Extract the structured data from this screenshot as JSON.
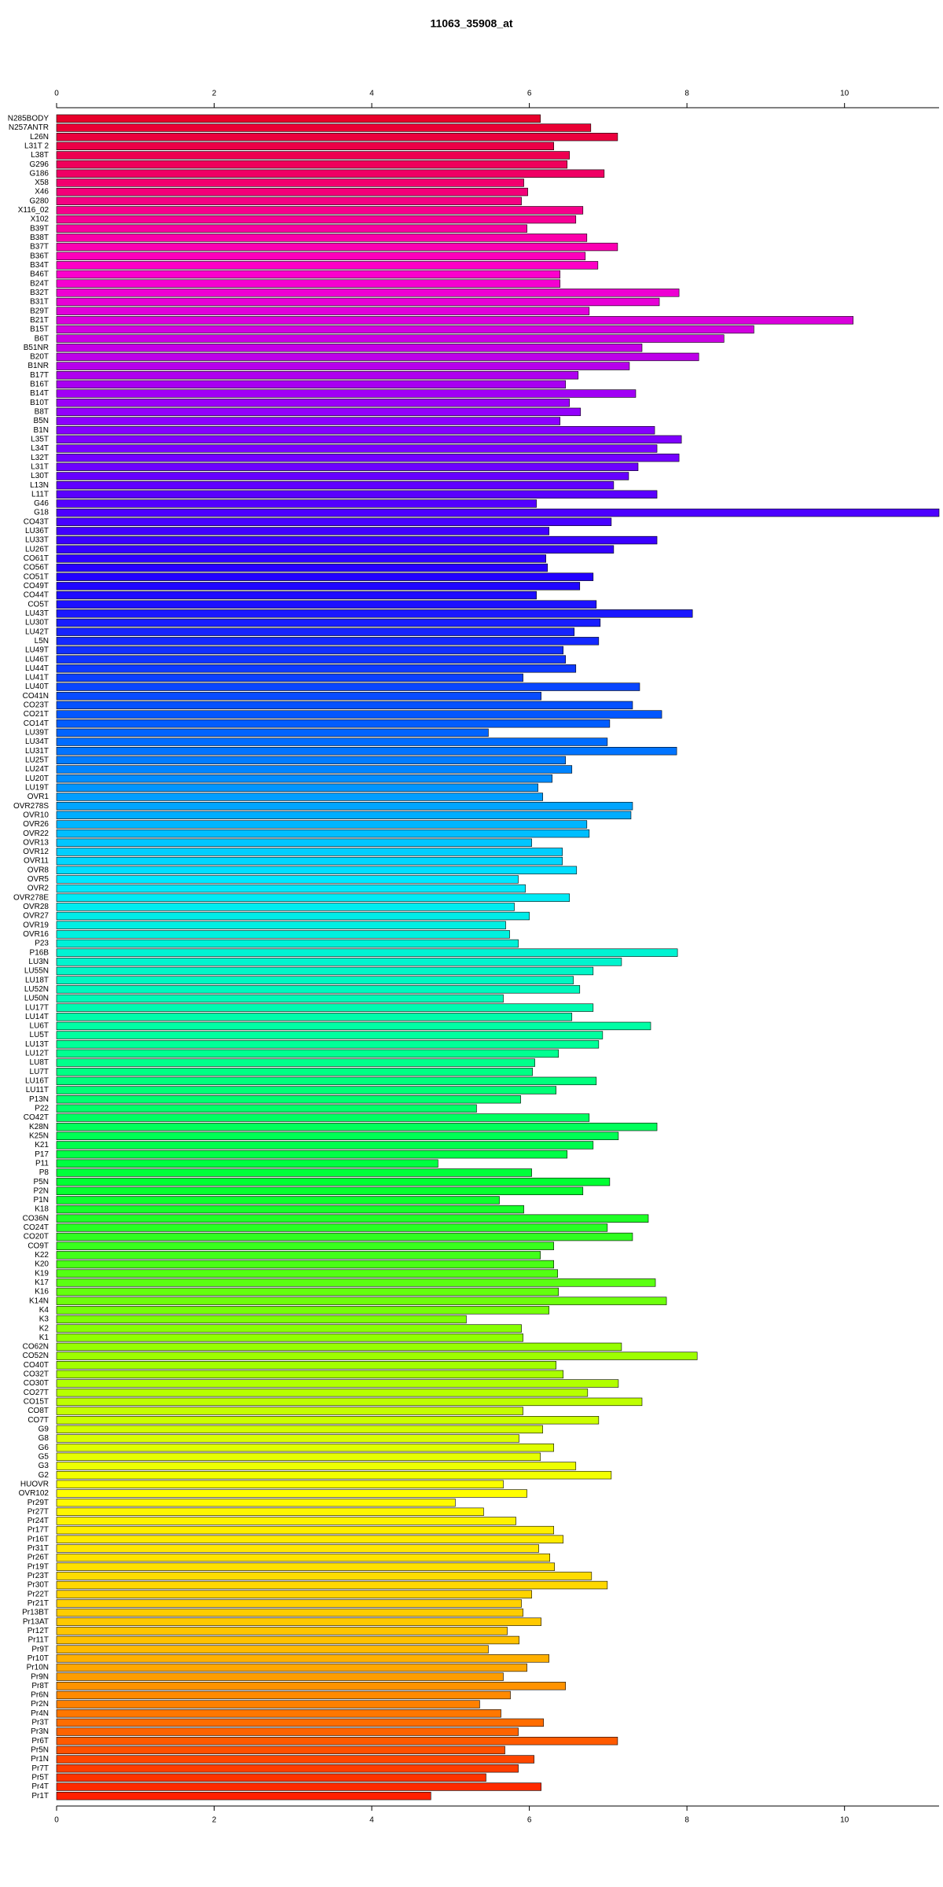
{
  "chart_data": {
    "type": "barh",
    "title": "11063_35908_at",
    "categories": [
      "N285BODY",
      "N257ANTR",
      "L26N",
      "L31T 2",
      "L38T",
      "G296",
      "G186",
      "X58",
      "X46",
      "G280",
      "X116_02",
      "X102",
      "B39T",
      "B38T",
      "B37T",
      "B36T",
      "B34T",
      "B46T",
      "B24T",
      "B32T",
      "B31T",
      "B29T",
      "B21T",
      "B15T",
      "B6T",
      "B51NR",
      "B20T",
      "B1NR",
      "B17T",
      "B16T",
      "B14T",
      "B10T",
      "B8T",
      "B5N",
      "B1N",
      "L35T",
      "L34T",
      "L32T",
      "L31T",
      "L30T",
      "L13N",
      "L11T",
      "G46",
      "G18",
      "CO43T",
      "LU36T",
      "LU33T",
      "LU26T",
      "CO61T",
      "CO56T",
      "CO51T",
      "CO49T",
      "CO44T",
      "CO5T",
      "LU43T",
      "LU30T",
      "LU42T",
      "L5N",
      "LU49T",
      "LU46T",
      "LU44T",
      "LU41T",
      "LU40T",
      "CO41N",
      "CO23T",
      "CO21T",
      "CO14T",
      "LU39T",
      "LU34T",
      "LU31T",
      "LU25T",
      "LU24T",
      "LU20T",
      "LU19T",
      "OVR1",
      "OVR278S",
      "OVR10",
      "OVR26",
      "OVR22",
      "OVR13",
      "OVR12",
      "OVR11",
      "OVR8",
      "OVR5",
      "OVR2",
      "OVR278E",
      "OVR28",
      "OVR27",
      "OVR19",
      "OVR16",
      "P23",
      "P16B",
      "LU3N",
      "LU55N",
      "LU18T",
      "LU52N",
      "LU50N",
      "LU17T",
      "LU14T",
      "LU6T",
      "LU5T",
      "LU13T",
      "LU12T",
      "LU8T",
      "LU7T",
      "LU16T",
      "LU11T",
      "P13N",
      "P22",
      "CO42T",
      "K28N",
      "K25N",
      "K21",
      "P17",
      "P11",
      "P8",
      "P5N",
      "P2N",
      "P1N",
      "K18",
      "CO36N",
      "CO24T",
      "CO20T",
      "CO9T",
      "K22",
      "K20",
      "K19",
      "K17",
      "K16",
      "K14N",
      "K4",
      "K3",
      "K2",
      "K1",
      "CO62N",
      "CO52N",
      "CO40T",
      "CO32T",
      "CO30T",
      "CO27T",
      "CO15T",
      "CO8T",
      "CO7T",
      "G9",
      "G8",
      "G6",
      "G5",
      "G3",
      "G2",
      "HUOVR",
      "OVR102",
      "Pr29T",
      "Pr27T",
      "Pr24T",
      "Pr17T",
      "Pr16T",
      "Pr31T",
      "Pr26T",
      "Pr19T",
      "Pr23T",
      "Pr30T",
      "Pr22T",
      "Pr21T",
      "Pr13BT",
      "Pr13AT",
      "Pr12T",
      "Pr11T",
      "Pr9T",
      "Pr10T",
      "Pr10N",
      "Pr9N",
      "Pr8T",
      "Pr6N",
      "Pr2N",
      "Pr4N",
      "Pr3T",
      "Pr3N",
      "Pr6T",
      "Pr5N",
      "Pr1N",
      "Pr7T",
      "Pr5T",
      "Pr4T",
      "Pr1T"
    ],
    "values": [
      6.14,
      6.78,
      7.12,
      6.31,
      6.51,
      6.48,
      6.95,
      5.93,
      5.98,
      5.9,
      6.68,
      6.59,
      5.97,
      6.73,
      7.12,
      6.71,
      6.87,
      6.39,
      6.39,
      7.9,
      7.65,
      6.76,
      10.11,
      8.85,
      8.47,
      7.43,
      8.15,
      7.27,
      6.62,
      6.46,
      7.35,
      6.51,
      6.65,
      6.39,
      7.59,
      7.93,
      7.62,
      7.9,
      7.38,
      7.26,
      7.07,
      7.62,
      6.09,
      11.2,
      7.04,
      6.25,
      7.62,
      7.07,
      6.21,
      6.23,
      6.81,
      6.64,
      6.09,
      6.85,
      8.07,
      6.9,
      6.57,
      6.88,
      6.43,
      6.46,
      6.59,
      5.92,
      7.4,
      6.15,
      7.31,
      7.68,
      7.02,
      5.48,
      6.99,
      7.87,
      6.46,
      6.54,
      6.29,
      6.11,
      6.17,
      7.31,
      7.29,
      6.73,
      6.76,
      6.03,
      6.42,
      6.42,
      6.6,
      5.86,
      5.95,
      6.51,
      5.81,
      6.0,
      5.7,
      5.75,
      5.86,
      7.88,
      7.17,
      6.81,
      6.56,
      6.64,
      5.67,
      6.81,
      6.54,
      7.54,
      6.93,
      6.88,
      6.37,
      6.07,
      6.04,
      6.85,
      6.34,
      5.89,
      5.33,
      6.76,
      7.62,
      7.13,
      6.81,
      6.48,
      4.84,
      6.03,
      7.02,
      6.68,
      5.62,
      5.93,
      7.51,
      6.99,
      7.31,
      6.31,
      6.14,
      6.31,
      6.36,
      7.6,
      6.37,
      7.74,
      6.25,
      5.2,
      5.9,
      5.92,
      7.17,
      8.13,
      6.34,
      6.43,
      7.13,
      6.74,
      7.43,
      5.92,
      6.88,
      6.17,
      5.87,
      6.31,
      6.14,
      6.59,
      7.04,
      5.67,
      5.97,
      5.06,
      5.42,
      5.83,
      6.31,
      6.43,
      6.12,
      6.26,
      6.32,
      6.79,
      6.99,
      6.03,
      5.9,
      5.92,
      6.15,
      5.72,
      5.87,
      5.48,
      6.25,
      5.97,
      5.67,
      6.46,
      5.76,
      5.37,
      5.64,
      6.18,
      5.86,
      7.12,
      5.69,
      6.06,
      5.86,
      5.45,
      6.15,
      4.75
    ],
    "color_stops": [
      "#e8002a",
      "#ff00cc",
      "#8a00ff",
      "#2200ff",
      "#0060ff",
      "#00e8ff",
      "#00ffa0",
      "#00ff30",
      "#90ff00",
      "#ffff00",
      "#ffc000",
      "#ff2000"
    ],
    "xlim": [
      0,
      11.2
    ],
    "xticks": [
      0,
      2,
      4,
      6,
      8,
      10
    ]
  }
}
